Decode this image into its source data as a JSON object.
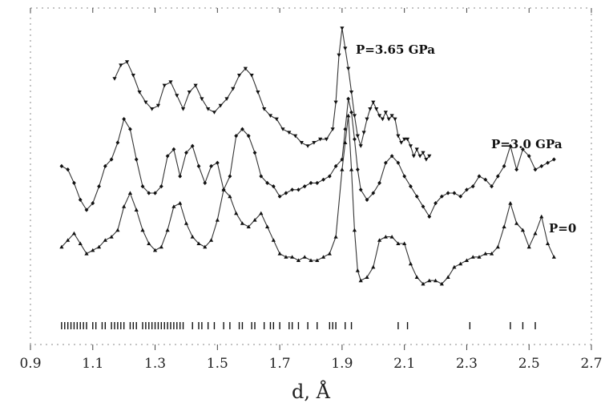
{
  "chart_data": {
    "type": "line",
    "title": "",
    "xlabel": "d, Å",
    "ylabel": "",
    "xlim": [
      0.9,
      2.7
    ],
    "ylim": [
      0,
      10
    ],
    "x_ticks": [
      0.9,
      1.1,
      1.3,
      1.5,
      1.7,
      1.9,
      2.1,
      2.3,
      2.5,
      2.7
    ],
    "x_tick_labels": [
      "0.9",
      "1.1",
      "1.3",
      "1.5",
      "1.7",
      "1.9",
      "2.1",
      "2.3",
      "2.5",
      "2.7"
    ],
    "grid": false,
    "series": [
      {
        "name": "P=3.65 GPa",
        "marker": "triangle-down",
        "x": [
          1.17,
          1.19,
          1.21,
          1.23,
          1.25,
          1.27,
          1.29,
          1.31,
          1.33,
          1.35,
          1.37,
          1.39,
          1.41,
          1.43,
          1.45,
          1.47,
          1.49,
          1.51,
          1.53,
          1.55,
          1.57,
          1.59,
          1.61,
          1.63,
          1.65,
          1.67,
          1.69,
          1.71,
          1.73,
          1.75,
          1.77,
          1.79,
          1.81,
          1.83,
          1.85,
          1.87,
          1.88,
          1.89,
          1.9,
          1.91,
          1.92,
          1.93,
          1.94,
          1.95,
          1.96,
          1.97,
          1.98,
          1.99,
          2.0,
          2.01,
          2.02,
          2.03,
          2.04,
          2.05,
          2.06,
          2.07,
          2.08,
          2.09,
          2.1,
          2.11,
          2.12,
          2.13,
          2.14,
          2.15,
          2.16,
          2.17,
          2.18
        ],
        "y": [
          7.9,
          8.3,
          8.4,
          8.0,
          7.5,
          7.2,
          7.0,
          7.1,
          7.7,
          7.8,
          7.4,
          7.0,
          7.5,
          7.7,
          7.3,
          7.0,
          6.9,
          7.1,
          7.3,
          7.6,
          8.0,
          8.2,
          8.0,
          7.5,
          7.0,
          6.8,
          6.7,
          6.4,
          6.3,
          6.2,
          6.0,
          5.9,
          6.0,
          6.1,
          6.1,
          6.4,
          7.2,
          8.6,
          9.4,
          8.8,
          8.2,
          7.5,
          6.8,
          6.2,
          5.9,
          6.3,
          6.7,
          7.0,
          7.2,
          7.0,
          6.8,
          6.7,
          6.9,
          6.7,
          6.8,
          6.7,
          6.2,
          6.0,
          6.1,
          6.1,
          5.9,
          5.6,
          5.8,
          5.6,
          5.7,
          5.5,
          5.6
        ]
      },
      {
        "name": "P=3.0 GPa",
        "marker": "diamond",
        "x": [
          1.0,
          1.02,
          1.04,
          1.06,
          1.08,
          1.1,
          1.12,
          1.14,
          1.16,
          1.18,
          1.2,
          1.22,
          1.24,
          1.26,
          1.28,
          1.3,
          1.32,
          1.34,
          1.36,
          1.38,
          1.4,
          1.42,
          1.44,
          1.46,
          1.48,
          1.5,
          1.52,
          1.54,
          1.56,
          1.58,
          1.6,
          1.62,
          1.64,
          1.66,
          1.68,
          1.7,
          1.72,
          1.74,
          1.76,
          1.78,
          1.8,
          1.82,
          1.84,
          1.86,
          1.88,
          1.9,
          1.91,
          1.92,
          1.93,
          1.94,
          1.95,
          1.96,
          1.98,
          2.0,
          2.02,
          2.04,
          2.06,
          2.08,
          2.1,
          2.12,
          2.14,
          2.16,
          2.18,
          2.2,
          2.22,
          2.24,
          2.26,
          2.28,
          2.3,
          2.32,
          2.34,
          2.36,
          2.38,
          2.4,
          2.42,
          2.44,
          2.46,
          2.48,
          2.5,
          2.52,
          2.54,
          2.56,
          2.58
        ],
        "y": [
          5.3,
          5.2,
          4.8,
          4.3,
          4.0,
          4.2,
          4.7,
          5.3,
          5.5,
          6.0,
          6.7,
          6.4,
          5.5,
          4.7,
          4.5,
          4.5,
          4.7,
          5.6,
          5.8,
          5.0,
          5.7,
          5.9,
          5.3,
          4.8,
          5.3,
          5.4,
          4.6,
          5.0,
          6.2,
          6.4,
          6.2,
          5.7,
          5.0,
          4.8,
          4.7,
          4.4,
          4.5,
          4.6,
          4.6,
          4.7,
          4.8,
          4.8,
          4.9,
          5.0,
          5.3,
          5.5,
          6.4,
          7.3,
          6.9,
          6.1,
          5.2,
          4.6,
          4.3,
          4.5,
          4.8,
          5.4,
          5.6,
          5.4,
          5.0,
          4.7,
          4.4,
          4.1,
          3.8,
          4.2,
          4.4,
          4.5,
          4.5,
          4.4,
          4.6,
          4.7,
          5.0,
          4.9,
          4.7,
          5.0,
          5.3,
          5.9,
          5.2,
          5.8,
          5.6,
          5.2,
          5.3,
          5.4,
          5.5
        ]
      },
      {
        "name": "P=0",
        "marker": "triangle-up",
        "x": [
          1.0,
          1.02,
          1.04,
          1.06,
          1.08,
          1.1,
          1.12,
          1.14,
          1.16,
          1.18,
          1.2,
          1.22,
          1.24,
          1.26,
          1.28,
          1.3,
          1.32,
          1.34,
          1.36,
          1.38,
          1.4,
          1.42,
          1.44,
          1.46,
          1.48,
          1.5,
          1.52,
          1.54,
          1.56,
          1.58,
          1.6,
          1.62,
          1.64,
          1.66,
          1.68,
          1.7,
          1.72,
          1.74,
          1.76,
          1.78,
          1.8,
          1.82,
          1.84,
          1.86,
          1.88,
          1.9,
          1.91,
          1.92,
          1.93,
          1.94,
          1.95,
          1.96,
          1.98,
          2.0,
          2.02,
          2.04,
          2.06,
          2.08,
          2.1,
          2.12,
          2.14,
          2.16,
          2.18,
          2.2,
          2.22,
          2.24,
          2.26,
          2.28,
          2.3,
          2.32,
          2.34,
          2.36,
          2.38,
          2.4,
          2.42,
          2.44,
          2.46,
          2.48,
          2.5,
          2.52,
          2.54,
          2.56,
          2.58
        ],
        "y": [
          2.9,
          3.1,
          3.3,
          3.0,
          2.7,
          2.8,
          2.9,
          3.1,
          3.2,
          3.4,
          4.1,
          4.5,
          4.0,
          3.4,
          3.0,
          2.8,
          2.9,
          3.4,
          4.1,
          4.2,
          3.6,
          3.2,
          3.0,
          2.9,
          3.1,
          3.7,
          4.6,
          4.4,
          3.9,
          3.6,
          3.5,
          3.7,
          3.9,
          3.5,
          3.1,
          2.7,
          2.6,
          2.6,
          2.5,
          2.6,
          2.5,
          2.5,
          2.6,
          2.7,
          3.2,
          5.2,
          6.0,
          6.8,
          5.2,
          3.4,
          2.2,
          1.9,
          2.0,
          2.3,
          3.1,
          3.2,
          3.2,
          3.0,
          3.0,
          2.4,
          2.0,
          1.8,
          1.9,
          1.9,
          1.8,
          2.0,
          2.3,
          2.4,
          2.5,
          2.6,
          2.6,
          2.7,
          2.7,
          2.9,
          3.5,
          4.2,
          3.6,
          3.4,
          2.9,
          3.3,
          3.8,
          3.0,
          2.6
        ]
      }
    ],
    "reflection_markers": [
      1.0,
      1.01,
      1.02,
      1.03,
      1.04,
      1.05,
      1.06,
      1.07,
      1.08,
      1.1,
      1.11,
      1.13,
      1.14,
      1.16,
      1.17,
      1.18,
      1.19,
      1.2,
      1.22,
      1.23,
      1.24,
      1.26,
      1.27,
      1.28,
      1.29,
      1.3,
      1.31,
      1.32,
      1.33,
      1.34,
      1.35,
      1.36,
      1.37,
      1.38,
      1.39,
      1.42,
      1.44,
      1.45,
      1.47,
      1.49,
      1.52,
      1.54,
      1.57,
      1.58,
      1.61,
      1.62,
      1.65,
      1.67,
      1.68,
      1.7,
      1.73,
      1.74,
      1.76,
      1.79,
      1.82,
      1.86,
      1.87,
      1.88,
      1.91,
      1.93,
      2.08,
      2.11,
      2.31,
      2.44,
      2.48,
      2.52
    ]
  }
}
